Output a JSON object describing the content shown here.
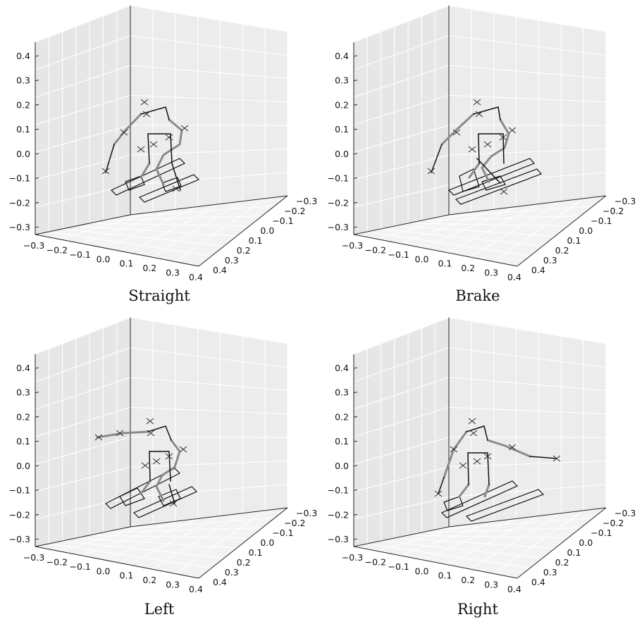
{
  "chart_data": [
    {
      "type": "scatter",
      "caption": "Straight",
      "z_ticks": [
        "0.4",
        "0.3",
        "0.2",
        "0.1",
        "0.0",
        "−0.1",
        "−0.2",
        "−0.3"
      ],
      "x_ticks": [
        "−0.3",
        "−0.2",
        "−0.1",
        "0.0",
        "0.1",
        "0.2",
        "0.3",
        "0.4"
      ],
      "y_ticks": [
        "−0.3",
        "−0.2",
        "−0.1",
        "0.0",
        "0.1",
        "0.2",
        "0.3",
        "0.4"
      ],
      "xlim": [
        -0.3,
        0.4
      ],
      "ylim": [
        -0.3,
        0.4
      ],
      "zlim": [
        -0.3,
        0.4
      ],
      "grid": true,
      "pose": "straight"
    },
    {
      "type": "scatter",
      "caption": "Brake",
      "z_ticks": [
        "0.4",
        "0.3",
        "0.2",
        "0.1",
        "0.0",
        "−0.1",
        "−0.2",
        "−0.3"
      ],
      "x_ticks": [
        "−0.3",
        "−0.2",
        "−0.1",
        "0.0",
        "0.1",
        "0.2",
        "0.3",
        "0.4"
      ],
      "y_ticks": [
        "−0.3",
        "−0.2",
        "−0.1",
        "0.0",
        "0.1",
        "0.2",
        "0.3",
        "0.4"
      ],
      "xlim": [
        -0.3,
        0.4
      ],
      "ylim": [
        -0.3,
        0.4
      ],
      "zlim": [
        -0.3,
        0.4
      ],
      "grid": true,
      "pose": "brake"
    },
    {
      "type": "scatter",
      "caption": "Left",
      "z_ticks": [
        "0.4",
        "0.3",
        "0.2",
        "0.1",
        "0.0",
        "−0.1",
        "−0.2",
        "−0.3"
      ],
      "x_ticks": [
        "−0.3",
        "−0.2",
        "−0.1",
        "0.0",
        "0.1",
        "0.2",
        "0.3",
        "0.4"
      ],
      "y_ticks": [
        "−0.3",
        "−0.2",
        "−0.1",
        "0.0",
        "0.1",
        "0.2",
        "0.3",
        "0.4"
      ],
      "xlim": [
        -0.3,
        0.4
      ],
      "ylim": [
        -0.3,
        0.4
      ],
      "zlim": [
        -0.3,
        0.4
      ],
      "grid": true,
      "pose": "left"
    },
    {
      "type": "scatter",
      "caption": "Right",
      "z_ticks": [
        "0.4",
        "0.3",
        "0.2",
        "0.1",
        "0.0",
        "−0.1",
        "−0.2",
        "−0.3"
      ],
      "x_ticks": [
        "−0.3",
        "−0.2",
        "−0.1",
        "0.0",
        "0.1",
        "0.2",
        "0.3",
        "0.4"
      ],
      "y_ticks": [
        "−0.3",
        "−0.2",
        "−0.1",
        "0.0",
        "0.1",
        "0.2",
        "0.3",
        "0.4"
      ],
      "xlim": [
        -0.3,
        0.4
      ],
      "ylim": [
        -0.3,
        0.4
      ],
      "zlim": [
        -0.3,
        0.4
      ],
      "grid": true,
      "pose": "right"
    }
  ]
}
